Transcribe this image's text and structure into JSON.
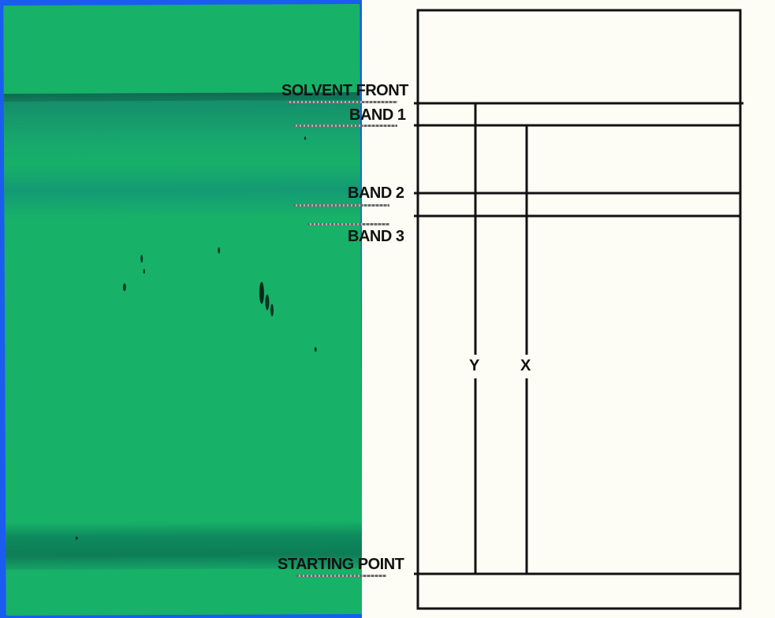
{
  "labels": {
    "solvent_front": "SOLVENT FRONT",
    "band1": "BAND 1",
    "band2": "BAND 2",
    "band3": "BAND 3",
    "starting_point": "STARTING POINT"
  },
  "distances": {
    "y": "Y",
    "x": "X"
  },
  "colors": {
    "background_blue": "#1a5cf0",
    "plate_green": "#17b168",
    "diagram_line": "#111111",
    "diagram_fill": "#fdfdf5"
  }
}
